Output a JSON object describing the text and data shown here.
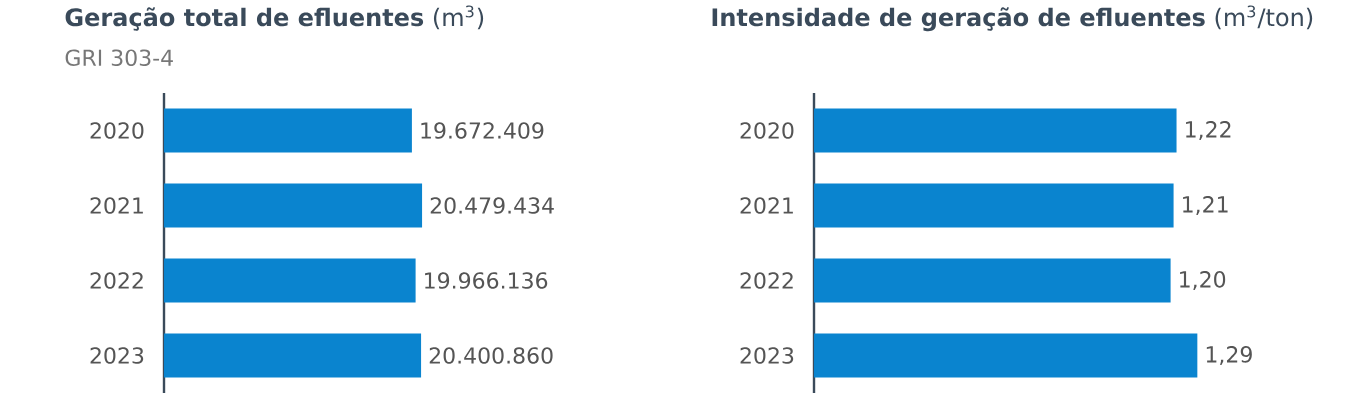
{
  "chart_data": [
    {
      "type": "bar",
      "orientation": "horizontal",
      "title": "**Geração total de efluentes** (m$^{3}$)",
      "subtitle": "GRI 303-4",
      "categories": [
        "2020",
        "2021",
        "2022",
        "2023"
      ],
      "values": [
        19672409,
        20479434,
        19966136,
        20400860
      ],
      "value_labels": [
        "19.672.409",
        "20.479.434",
        "19.966.136",
        "20.400.860"
      ],
      "color": "#0a84cf"
    },
    {
      "type": "bar",
      "orientation": "horizontal",
      "title": "**Intensidade de geração de efluentes** (m$^{3}$/ton)",
      "categories": [
        "2020",
        "2021",
        "2022",
        "2023"
      ],
      "values": [
        1.22,
        1.21,
        1.2,
        1.29
      ],
      "value_labels": [
        "1,22",
        "1,21",
        "1,20",
        "1,29"
      ],
      "color": "#0a84cf"
    }
  ]
}
